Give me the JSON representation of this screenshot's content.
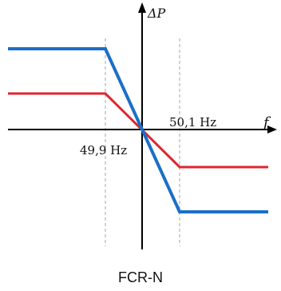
{
  "diagram": {
    "caption": "FCR-N",
    "y_axis_label": "ΔP",
    "x_axis_label": "f",
    "marker_low_label": "49,9 Hz",
    "marker_high_label": "50,1 Hz",
    "colors": {
      "blue_curve": "#1a6fc9",
      "red_curve": "#e02531",
      "axis": "#000000",
      "marker_lines": "#a6a6a6"
    }
  }
}
